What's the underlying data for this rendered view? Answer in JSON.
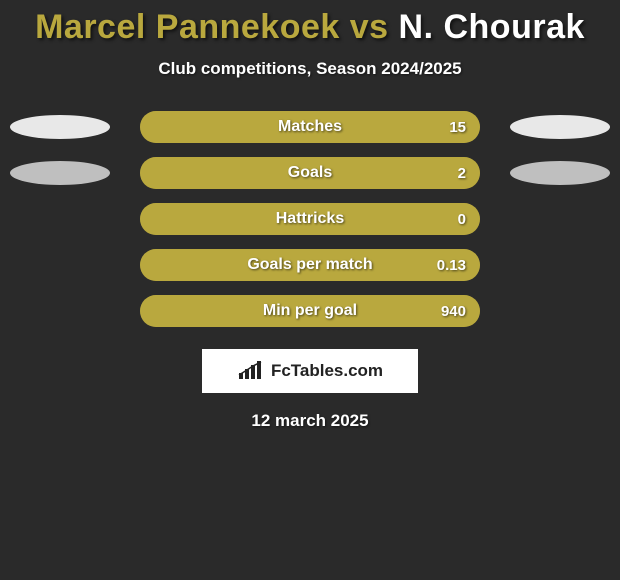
{
  "title": {
    "player1": "Marcel Pannekoek",
    "vs": "vs",
    "player2": "N. Chourak",
    "player1_color": "#b9a83e",
    "player2_color": "#ffffff"
  },
  "subtitle": "Club competitions, Season 2024/2025",
  "background_color": "#2a2a2a",
  "bar_track_color": "#7a7030",
  "bar_fill_color": "#b9a83e",
  "oval_light": "#e8e8e8",
  "oval_dark": "#bfbfbf",
  "stats": [
    {
      "label": "Matches",
      "value": "15",
      "fill_pct": 100,
      "left_oval": "#e8e8e8",
      "right_oval": "#e8e8e8"
    },
    {
      "label": "Goals",
      "value": "2",
      "fill_pct": 100,
      "left_oval": "#bfbfbf",
      "right_oval": "#bfbfbf"
    },
    {
      "label": "Hattricks",
      "value": "0",
      "fill_pct": 100,
      "left_oval": null,
      "right_oval": null
    },
    {
      "label": "Goals per match",
      "value": "0.13",
      "fill_pct": 100,
      "left_oval": null,
      "right_oval": null
    },
    {
      "label": "Min per goal",
      "value": "940",
      "fill_pct": 100,
      "left_oval": null,
      "right_oval": null
    }
  ],
  "brand": "FcTables.com",
  "date": "12 march 2025"
}
